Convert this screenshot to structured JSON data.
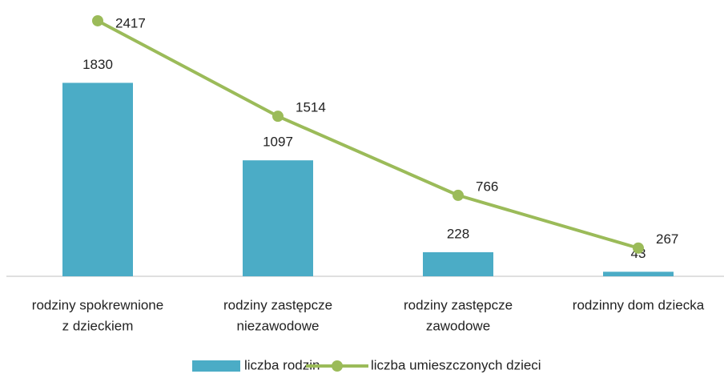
{
  "chart_data": {
    "type": "bar_line",
    "categories": [
      [
        "rodziny spokrewnione",
        "z dzieckiem"
      ],
      [
        "rodziny zastępcze",
        "niezawodowe"
      ],
      [
        "rodziny zastępcze",
        "zawodowe"
      ],
      [
        "rodzinny dom dziecka"
      ]
    ],
    "series": [
      {
        "name": "liczba rodzin",
        "type": "bar",
        "color": "#4bacc6",
        "values": [
          1830,
          1097,
          228,
          43
        ]
      },
      {
        "name": "liczba umieszczonych dzieci",
        "type": "line",
        "color": "#9bbb59",
        "values": [
          2417,
          1514,
          766,
          267
        ]
      }
    ],
    "ylim": [
      0,
      2500
    ]
  }
}
